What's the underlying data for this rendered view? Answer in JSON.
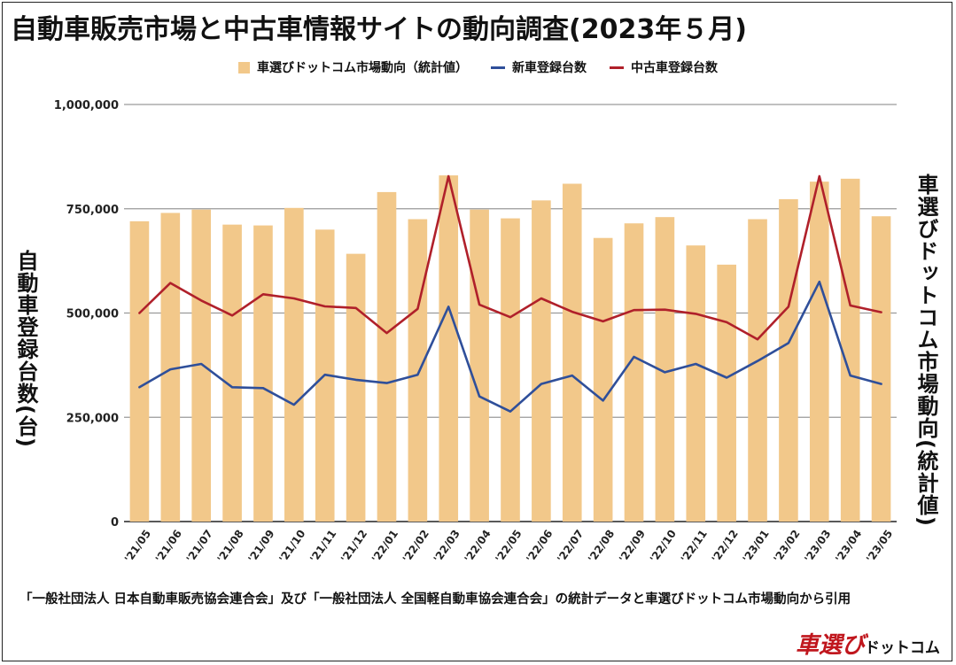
{
  "title": "自動車販売市場と中古車情報サイトの動向調査(2023年５月)",
  "y_left_label": "自動車登録台数(台)",
  "y_right_label": "車選びドットコム市場動向(統計値)",
  "source_note": "「一般社団法人 日本自動車販売協会連合会」及び「一般社団法人 全国軽自動車協会連合会」の統計データと車選びドットコム市場動向から引用",
  "logo": {
    "main": "車選び",
    "sub": "ドットコム"
  },
  "colors": {
    "bar": "#f2c88a",
    "new_car": "#2f4f9a",
    "used_car": "#b0202a",
    "grid": "#9a9a9a",
    "logo": "#c0161d"
  },
  "chart_data": {
    "type": "bar",
    "title": "自動車販売市場と中古車情報サイトの動向調査(2023年５月)",
    "categories": [
      "'21/05",
      "'21/06",
      "'21/07",
      "'21/08",
      "'21/09",
      "'21/10",
      "'21/11",
      "'21/12",
      "'22/01",
      "'22/02",
      "'22/03",
      "'22/04",
      "'22/05",
      "'22/06",
      "'22/07",
      "'22/08",
      "'22/09",
      "'22/10",
      "'22/11",
      "'22/12",
      "'23/01",
      "'23/02",
      "'23/03",
      "'23/04",
      "'23/05"
    ],
    "ylim": [
      0,
      1000000
    ],
    "yticks": [
      0,
      250000,
      500000,
      750000,
      1000000
    ],
    "ytick_labels": [
      "0",
      "250,000",
      "500,000",
      "750,000",
      "1,000,000"
    ],
    "ylabel": "自動車登録台数(台)",
    "ylabel_right": "車選びドットコム市場動向(統計値)",
    "grid": true,
    "legend_position": "top-center",
    "series": [
      {
        "name": "車選びドットコム市場動向（統計値）",
        "type": "bar",
        "values": [
          720000,
          740000,
          748000,
          712000,
          710000,
          752000,
          700000,
          642000,
          790000,
          725000,
          830000,
          748000,
          727000,
          770000,
          810000,
          680000,
          715000,
          730000,
          662000,
          616000,
          725000,
          773000,
          815000,
          822000,
          732000
        ]
      },
      {
        "name": "新車登録台数",
        "type": "line",
        "values": [
          322000,
          365000,
          378000,
          322000,
          320000,
          280000,
          352000,
          340000,
          332000,
          352000,
          515000,
          300000,
          264000,
          330000,
          350000,
          290000,
          395000,
          358000,
          378000,
          345000,
          385000,
          428000,
          575000,
          350000,
          330000
        ]
      },
      {
        "name": "中古車登録台数",
        "type": "line",
        "values": [
          500000,
          572000,
          530000,
          494000,
          545000,
          535000,
          516000,
          512000,
          452000,
          510000,
          828000,
          520000,
          490000,
          535000,
          503000,
          480000,
          507000,
          508000,
          498000,
          478000,
          437000,
          515000,
          828000,
          518000,
          502000
        ]
      }
    ]
  }
}
